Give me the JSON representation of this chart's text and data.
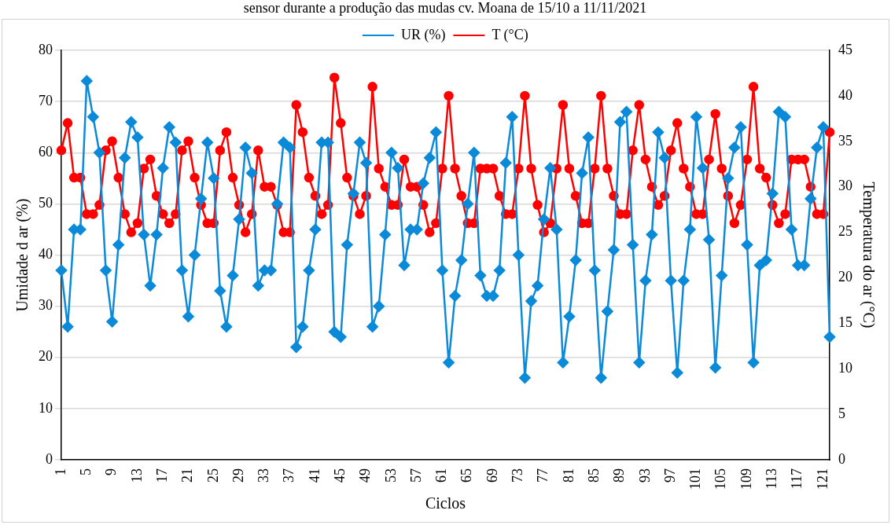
{
  "chart_data": {
    "type": "line",
    "annotations": [
      "sensor durante a produção das mudas cv. Moana de 15/10 a 11/11/2021"
    ],
    "xlabel": "Ciclos",
    "ylabel": "Umidade d ar (%)",
    "y2label": "Temperatura do ar (°C)",
    "categories": [
      "1",
      null,
      null,
      null,
      "5",
      null,
      null,
      null,
      "9",
      null,
      null,
      null,
      "13",
      null,
      null,
      null,
      "17",
      null,
      null,
      null,
      "21",
      null,
      null,
      null,
      "25",
      null,
      null,
      null,
      "29",
      null,
      null,
      null,
      "33",
      null,
      null,
      null,
      "37",
      null,
      null,
      null,
      "41",
      null,
      null,
      null,
      "45",
      null,
      null,
      null,
      "49",
      null,
      null,
      null,
      "53",
      null,
      null,
      null,
      "57",
      null,
      null,
      null,
      "61",
      null,
      null,
      null,
      "65",
      null,
      null,
      null,
      "69",
      null,
      null,
      null,
      "73",
      null,
      null,
      null,
      "77",
      null,
      null,
      null,
      "81",
      null,
      null,
      null,
      "85",
      null,
      null,
      null,
      "89",
      null,
      null,
      null,
      "93",
      null,
      null,
      null,
      "97",
      null,
      null,
      null,
      "101",
      null,
      null,
      null,
      "105",
      null,
      null,
      null,
      "109",
      null,
      null,
      null,
      "113",
      null,
      null,
      null,
      "117",
      null,
      null,
      null,
      "121",
      null
    ],
    "series": [
      {
        "name": "UR (%)",
        "color": "#0a8ad8",
        "marker": "diamond",
        "values": [
          37,
          26,
          45,
          45,
          74,
          67,
          60,
          37,
          27,
          42,
          59,
          66,
          63,
          44,
          34,
          44,
          57,
          65,
          62,
          37,
          28,
          40,
          51,
          62,
          55,
          33,
          26,
          36,
          47,
          61,
          56,
          34,
          37,
          37,
          50,
          62,
          61,
          22,
          26,
          37,
          45,
          62,
          62,
          25,
          24,
          42,
          52,
          62,
          58,
          26,
          30,
          44,
          60,
          57,
          38,
          45,
          45,
          54,
          59,
          64,
          37,
          19,
          32,
          39,
          50,
          60,
          36,
          32,
          32,
          37,
          58,
          67,
          40,
          16,
          31,
          34,
          47,
          57,
          45,
          19,
          28,
          39,
          56,
          63,
          37,
          16,
          29,
          41,
          66,
          68,
          42,
          19,
          35,
          44,
          64,
          59,
          35,
          17,
          35,
          45,
          67,
          57,
          43,
          18,
          36,
          55,
          61,
          65,
          42,
          19,
          38,
          39,
          52,
          68,
          67,
          45,
          38,
          38,
          51,
          61,
          65,
          24
        ]
      },
      {
        "name": "T (°C)",
        "color": "#ff0000",
        "marker": "circle",
        "axis": "y2",
        "values": [
          34,
          37,
          31,
          31,
          27,
          27,
          28,
          34,
          35,
          31,
          27,
          25,
          26,
          32,
          33,
          29,
          27,
          26,
          27,
          34,
          35,
          31,
          28,
          26,
          26,
          34,
          36,
          31,
          28,
          25,
          27,
          34,
          30,
          30,
          28,
          25,
          25,
          39,
          36,
          31,
          29,
          27,
          28,
          42,
          37,
          31,
          29,
          27,
          29,
          41,
          32,
          30,
          28,
          28,
          33,
          30,
          30,
          28,
          25,
          26,
          32,
          40,
          32,
          29,
          26,
          26,
          32,
          32,
          32,
          29,
          27,
          27,
          32,
          40,
          32,
          28,
          25,
          26,
          32,
          39,
          32,
          29,
          26,
          26,
          32,
          40,
          32,
          29,
          27,
          27,
          34,
          39,
          33,
          30,
          28,
          29,
          34,
          37,
          32,
          30,
          27,
          27,
          33,
          38,
          32,
          29,
          26,
          28,
          33,
          41,
          32,
          31,
          28,
          26,
          27,
          33,
          33,
          33,
          30,
          27,
          27,
          36
        ]
      }
    ],
    "ylim": [
      0,
      80
    ],
    "yticks": [
      0,
      10,
      20,
      30,
      40,
      50,
      60,
      70,
      80
    ],
    "y2lim": [
      0,
      45
    ],
    "y2ticks": [
      0,
      5,
      10,
      15,
      20,
      25,
      30,
      35,
      40,
      45
    ],
    "grid": "y",
    "legend": "top",
    "line_style": "solid"
  }
}
